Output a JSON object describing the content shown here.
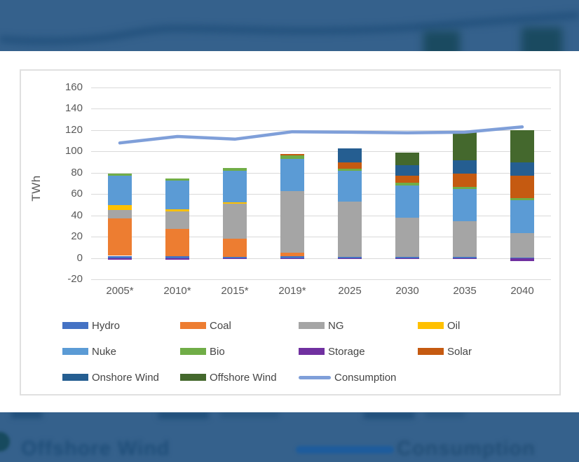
{
  "background": {
    "strip_color": "#35618C",
    "blurred_bar_color": "#1A4A60",
    "blurred_line_color": "#1F4E79",
    "bottom_blurred_text_offshore": "Offshore Wind",
    "bottom_blurred_text_consumption": "Consumption",
    "bottom_blurred_line_color": "#1E5C9C"
  },
  "chart": {
    "y_axis_title": "TWh",
    "axis_text_color": "#595959",
    "gridline_color": "#D9D9D9",
    "panel_border_color": "#E0E0E0"
  },
  "chart_data": {
    "type": "bar",
    "subtype": "stacked-bars-with-line",
    "title": "",
    "xlabel": "",
    "ylabel": "TWh",
    "ylim": [
      -20,
      160
    ],
    "yticks": [
      160,
      140,
      120,
      100,
      80,
      60,
      40,
      20,
      0,
      -20
    ],
    "grid": true,
    "legend_position": "bottom",
    "categories": [
      "2005*",
      "2010*",
      "2015*",
      "2019*",
      "2025",
      "2030",
      "2035",
      "2040"
    ],
    "series": [
      {
        "name": "Hydro",
        "color": "#4472C4",
        "values": [
          2,
          2,
          1,
          2,
          1,
          1,
          1,
          0.5
        ]
      },
      {
        "name": "Coal",
        "color": "#ED7D31",
        "values": [
          35,
          25,
          17,
          3,
          0,
          0,
          0,
          0
        ]
      },
      {
        "name": "NG",
        "color": "#A5A5A5",
        "values": [
          8,
          17,
          33,
          58,
          52,
          37,
          33.5,
          23
        ]
      },
      {
        "name": "Oil",
        "color": "#FFC000",
        "values": [
          4.5,
          1.5,
          1.5,
          0,
          0,
          0,
          0,
          0
        ]
      },
      {
        "name": "Nuke",
        "color": "#5B9BD5",
        "values": [
          28,
          27,
          29,
          30,
          29,
          30,
          30,
          30.5
        ]
      },
      {
        "name": "Bio",
        "color": "#70AD47",
        "values": [
          2,
          2,
          3,
          3.5,
          2,
          2.5,
          2.5,
          2
        ]
      },
      {
        "name": "Storage",
        "color": "#7030A0",
        "values": [
          -1.5,
          -1.5,
          -0.5,
          -0.5,
          -1,
          -1,
          -1,
          -3
        ]
      },
      {
        "name": "Solar",
        "color": "#C55A11",
        "values": [
          0,
          0,
          0,
          1,
          6,
          7,
          12.5,
          21
        ]
      },
      {
        "name": "Onshore Wind",
        "color": "#255E91",
        "values": [
          0,
          0,
          0,
          0,
          13,
          9.5,
          12,
          12.5
        ]
      },
      {
        "name": "Offshore Wind",
        "color": "#44682D",
        "values": [
          0,
          0,
          0,
          0,
          0,
          12,
          28,
          30.5
        ]
      }
    ],
    "line_series": {
      "name": "Consumption",
      "color": "#7F9FD9",
      "values": [
        108,
        114,
        111.5,
        118.5,
        118,
        117.5,
        118,
        123
      ]
    }
  },
  "legend": {
    "rows": [
      [
        {
          "label": "Hydro",
          "color": "#4472C4",
          "type": "box"
        },
        {
          "label": "Coal",
          "color": "#ED7D31",
          "type": "box"
        },
        {
          "label": "NG",
          "color": "#A5A5A5",
          "type": "box"
        },
        {
          "label": "Oil",
          "color": "#FFC000",
          "type": "box"
        }
      ],
      [
        {
          "label": "Nuke",
          "color": "#5B9BD5",
          "type": "box"
        },
        {
          "label": "Bio",
          "color": "#70AD47",
          "type": "box"
        },
        {
          "label": "Storage",
          "color": "#7030A0",
          "type": "box"
        },
        {
          "label": "Solar",
          "color": "#C55A11",
          "type": "box"
        }
      ],
      [
        {
          "label": "Onshore Wind",
          "color": "#255E91",
          "type": "box"
        },
        {
          "label": "Offshore Wind",
          "color": "#44682D",
          "type": "box"
        },
        {
          "label": "Consumption",
          "color": "#7F9FD9",
          "type": "line"
        }
      ]
    ]
  }
}
